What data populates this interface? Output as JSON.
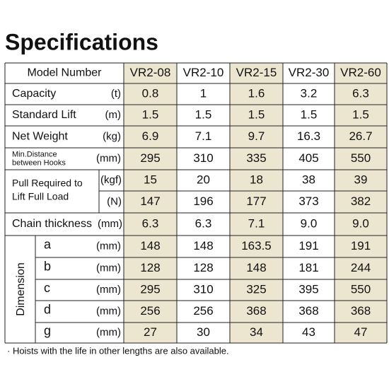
{
  "title": "Specifications",
  "table": {
    "header": {
      "label": "Model Number",
      "models": [
        "VR2-08",
        "VR2-10",
        "VR2-15",
        "VR2-30",
        "VR2-60"
      ]
    },
    "rows": [
      {
        "label": "Capacity",
        "unit": "(t)",
        "values": [
          "0.8",
          "1",
          "1.6",
          "3.2",
          "6.3"
        ]
      },
      {
        "label": "Standard Lift",
        "unit": "(m)",
        "values": [
          "1.5",
          "1.5",
          "1.5",
          "1.5",
          "1.5"
        ]
      },
      {
        "label": "Net Weight",
        "unit": "(kg)",
        "values": [
          "6.9",
          "7.1",
          "9.7",
          "16.3",
          "26.7"
        ]
      }
    ],
    "min_distance": {
      "label_lines": [
        "Min.Distance",
        "between Hooks"
      ],
      "unit": "(mm)",
      "values": [
        "295",
        "310",
        "335",
        "405",
        "550"
      ]
    },
    "pull": {
      "label_lines": [
        "Pull Required to",
        "Lift Full Load"
      ],
      "rows": [
        {
          "unit": "(kgf)",
          "values": [
            "15",
            "20",
            "18",
            "38",
            "39"
          ]
        },
        {
          "unit": "(N)",
          "values": [
            "147",
            "196",
            "177",
            "373",
            "382"
          ]
        }
      ]
    },
    "chain": {
      "label": "Chain thickness",
      "unit": "(mm)",
      "values": [
        "6.3",
        "6.3",
        "7.1",
        "9.0",
        "9.0"
      ]
    },
    "dimension": {
      "label": "Dimension",
      "rows": [
        {
          "label": "a",
          "unit": "(mm)",
          "values": [
            "148",
            "148",
            "163.5",
            "191",
            "191"
          ]
        },
        {
          "label": "b",
          "unit": "(mm)",
          "values": [
            "128",
            "128",
            "148",
            "181",
            "244"
          ]
        },
        {
          "label": "c",
          "unit": "(mm)",
          "values": [
            "295",
            "310",
            "325",
            "395",
            "550"
          ]
        },
        {
          "label": "d",
          "unit": "(mm)",
          "values": [
            "256",
            "256",
            "368",
            "368",
            "368"
          ]
        },
        {
          "label": "g",
          "unit": "(mm)",
          "values": [
            "27",
            "30",
            "34",
            "43",
            "47"
          ]
        }
      ]
    }
  },
  "footnote": "· Hoists with the life in other lengths are also available."
}
